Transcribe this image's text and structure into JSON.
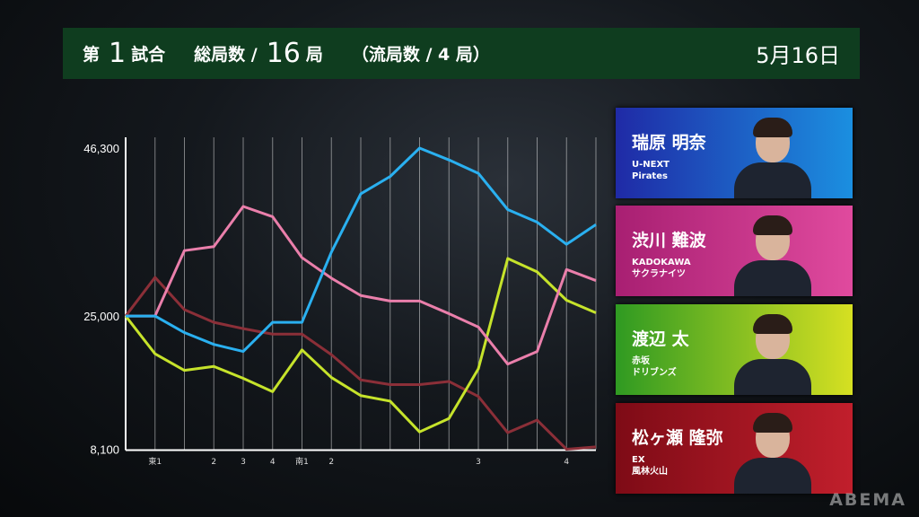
{
  "header": {
    "game_prefix": "第",
    "game_number": "1",
    "game_suffix": "試合",
    "total_label": "総局数 /",
    "total_value": "16",
    "total_unit": "局",
    "draw_label": "（流局数 / 4 局）",
    "date": "5月16日",
    "background": "#0f3d1f"
  },
  "players": [
    {
      "name": "瑞原 明奈",
      "team": "U-NEXT\nPirates",
      "color": "#2ab0f0",
      "card_colors": [
        "#1f2aa6",
        "#1b8fe0"
      ]
    },
    {
      "name": "渋川 難波",
      "team": "KADOKAWA\nサクラナイツ",
      "color": "#ea7fab",
      "card_colors": [
        "#a81f72",
        "#e04a9e"
      ]
    },
    {
      "name": "渡辺 太",
      "team": "赤坂\nドリブンズ",
      "color": "#c6e32b",
      "card_colors": [
        "#2f9a22",
        "#d6e022"
      ]
    },
    {
      "name": "松ヶ瀬 隆弥",
      "team": "EX\n風林火山",
      "color": "#8b2f38",
      "card_colors": [
        "#7e0b16",
        "#c11f2c"
      ]
    }
  ],
  "watermark": "ABEMA",
  "chart_data": {
    "type": "line",
    "title": "",
    "xlabel": "",
    "ylabel": "",
    "x_tick_labels": [
      "",
      "東1",
      "",
      "2",
      "3",
      "4",
      "南1",
      "2",
      "",
      "",
      "",
      "",
      "3",
      "",
      "",
      "4",
      ""
    ],
    "y_tick_labels": [
      "46,300",
      "25,000",
      "8,100"
    ],
    "y_ticks": [
      46300,
      25000,
      8100
    ],
    "ylim": [
      8100,
      46300
    ],
    "grid": "vertical",
    "legend": "none",
    "series": [
      {
        "name": "瑞原 明奈",
        "color": "#2ab0f0",
        "values": [
          25000,
          25000,
          22900,
          21400,
          20500,
          24200,
          24200,
          33100,
          40500,
          42700,
          46300,
          44800,
          43100,
          38500,
          36900,
          34100,
          36600
        ]
      },
      {
        "name": "渋川 難波",
        "color": "#ea7fab",
        "values": [
          25000,
          25000,
          33300,
          33800,
          38900,
          37600,
          32400,
          29800,
          27600,
          26900,
          26900,
          25300,
          23600,
          18900,
          20500,
          30900,
          29500
        ]
      },
      {
        "name": "渡辺 太",
        "color": "#c6e32b",
        "values": [
          25000,
          20200,
          18100,
          18600,
          17100,
          15400,
          20700,
          17200,
          14900,
          14200,
          10300,
          12000,
          18300,
          32300,
          30600,
          27000,
          25400
        ]
      },
      {
        "name": "松ヶ瀬 隆弥",
        "color": "#8b2f38",
        "values": [
          25000,
          29900,
          25800,
          24200,
          23400,
          22700,
          22700,
          20100,
          16900,
          16300,
          16300,
          16700,
          14800,
          10200,
          11800,
          8100,
          8400
        ]
      }
    ]
  }
}
